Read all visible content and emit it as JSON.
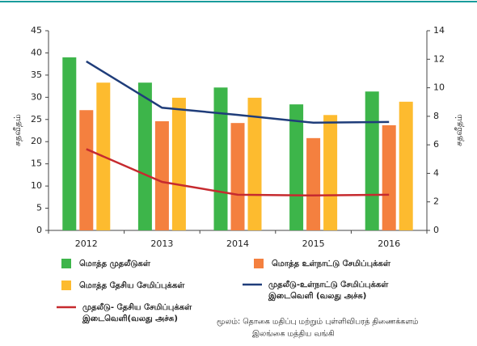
{
  "chart_data": {
    "type": "bar_line",
    "categories": [
      "2012",
      "2013",
      "2014",
      "2015",
      "2016"
    ],
    "ylabel": "சதவீதம்",
    "y2label": "சதவீதம்",
    "ylim": [
      0,
      45
    ],
    "yticks": [
      0,
      5,
      10,
      15,
      20,
      25,
      30,
      35,
      40,
      45
    ],
    "y2lim": [
      0,
      14
    ],
    "y2ticks": [
      0,
      2,
      4,
      6,
      8,
      10,
      12,
      14
    ],
    "series": [
      {
        "name": [
          "மொத்த முதலீடுகள்"
        ],
        "kind": "bar",
        "color": "#3db54a",
        "values": [
          39.0,
          33.3,
          32.2,
          28.4,
          31.3
        ]
      },
      {
        "name": [
          "மொத்த உள்நாட்டு சேமிப்புக்கள்"
        ],
        "kind": "bar",
        "color": "#f4803f",
        "values": [
          27.1,
          24.6,
          24.2,
          20.8,
          23.7
        ]
      },
      {
        "name": [
          "மொத்த தேசிய சேமிப்புக்கள்"
        ],
        "kind": "bar",
        "color": "#fdbb2f",
        "values": [
          33.3,
          29.9,
          29.9,
          26.0,
          29.0
        ]
      },
      {
        "name": [
          "முதலீடு-உள்நாட்டு சேமிப்புக்கள்",
          "இடைவெளி (வலது அச்சு)"
        ],
        "kind": "line",
        "axis": "y2",
        "color": "#1f3d7a",
        "values": [
          11.85,
          8.6,
          8.1,
          7.55,
          7.6
        ]
      },
      {
        "name": [
          "முதலீடு- தேசிய சேமிப்புக்கள்",
          "இடைவெளி(வலது அச்சு)"
        ],
        "kind": "line",
        "axis": "y2",
        "color": "#c62a2f",
        "values": [
          5.7,
          3.4,
          2.5,
          2.45,
          2.5
        ]
      }
    ],
    "source": [
      "மூலம்: தொகை மதிப்பு மற்றும் புள்ளிவிபரத் திணைக்களம்",
      "இலங்கை மத்திய வங்கி"
    ]
  }
}
